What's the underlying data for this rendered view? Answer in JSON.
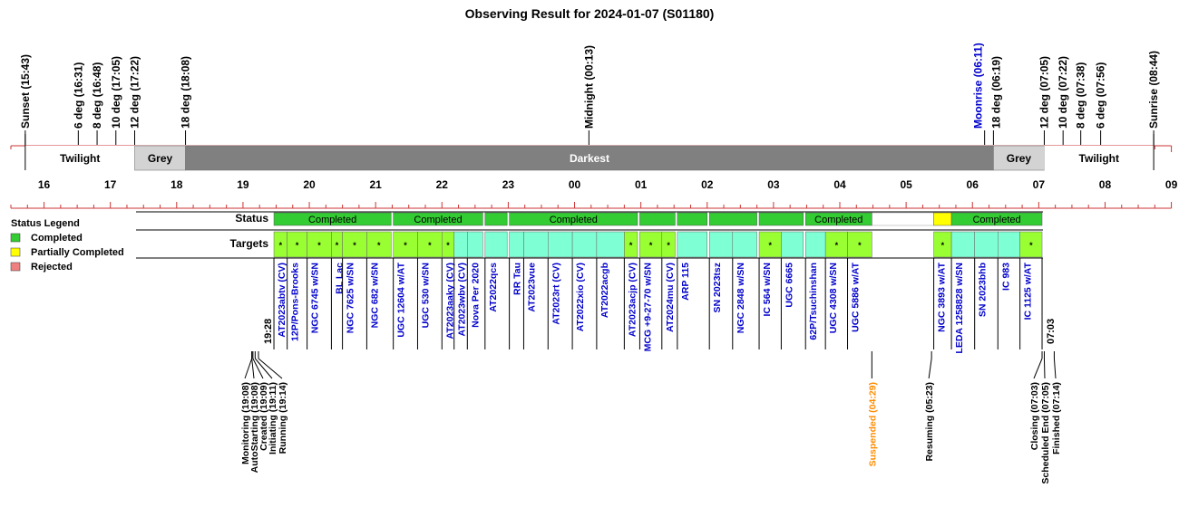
{
  "chart_data": {
    "type": "timeline",
    "title": "Observing Result for 2024-01-07 (S01180)",
    "time_axis": {
      "unit": "hour (local time)",
      "start": "15:30",
      "end": "09:00 (next day)",
      "tick_labels": [
        "16",
        "17",
        "18",
        "19",
        "20",
        "21",
        "22",
        "23",
        "00",
        "01",
        "02",
        "03",
        "04",
        "05",
        "06",
        "07",
        "08",
        "09"
      ]
    },
    "events_top": [
      {
        "label": "Sunset (15:43)",
        "time": "15:43",
        "color": "#000000"
      },
      {
        "label": "6 deg (16:31)",
        "time": "16:31",
        "color": "#000000"
      },
      {
        "label": "8 deg (16:48)",
        "time": "16:48",
        "color": "#000000"
      },
      {
        "label": "10 deg (17:05)",
        "time": "17:05",
        "color": "#000000"
      },
      {
        "label": "12 deg (17:22)",
        "time": "17:22",
        "color": "#000000"
      },
      {
        "label": "18 deg (18:08)",
        "time": "18:08",
        "color": "#000000"
      },
      {
        "label": "Midnight (00:13)",
        "time": "00:13",
        "color": "#000000"
      },
      {
        "label": "Moonrise (06:11)",
        "time": "06:11",
        "color": "#0000cc"
      },
      {
        "label": "18 deg (06:19)",
        "time": "06:19",
        "color": "#000000"
      },
      {
        "label": "12 deg (07:05)",
        "time": "07:05",
        "color": "#000000"
      },
      {
        "label": "10 deg (07:22)",
        "time": "07:22",
        "color": "#000000"
      },
      {
        "label": "8 deg (07:38)",
        "time": "07:38",
        "color": "#000000"
      },
      {
        "label": "6 deg (07:56)",
        "time": "07:56",
        "color": "#000000"
      },
      {
        "label": "Sunrise (08:44)",
        "time": "08:44",
        "color": "#000000"
      }
    ],
    "sky_periods": [
      {
        "label": "Twilight",
        "start": "15:43",
        "end": "17:22",
        "fill": "#ffffff",
        "text_color": "#000000"
      },
      {
        "label": "Grey",
        "start": "17:22",
        "end": "18:08",
        "fill": "#d3d3d3",
        "text_color": "#000000"
      },
      {
        "label": "Darkest",
        "start": "18:08",
        "end": "06:19",
        "fill": "#808080",
        "text_color": "#ffffff"
      },
      {
        "label": "Grey",
        "start": "06:19",
        "end": "07:05",
        "fill": "#d3d3d3",
        "text_color": "#000000"
      },
      {
        "label": "Twilight",
        "start": "07:05",
        "end": "08:44",
        "fill": "#ffffff",
        "text_color": "#000000"
      }
    ],
    "row_labels": {
      "status": "Status",
      "targets": "Targets"
    },
    "legend": {
      "title": "Status Legend",
      "items": [
        {
          "label": "Completed",
          "color": "#33cc33"
        },
        {
          "label": "Partially Completed",
          "color": "#ffff00"
        },
        {
          "label": "Rejected",
          "color": "#f08080"
        }
      ]
    },
    "status_blocks": [
      {
        "label": "Completed",
        "status": "completed",
        "start": "19:28",
        "end": "21:14"
      },
      {
        "label": "Completed",
        "status": "completed",
        "start": "21:16",
        "end": "22:37"
      },
      {
        "label": "",
        "status": "completed",
        "start": "22:39",
        "end": "22:59"
      },
      {
        "label": "Completed",
        "status": "completed",
        "start": "23:01",
        "end": "00:57"
      },
      {
        "label": "",
        "status": "completed",
        "start": "00:59",
        "end": "01:31"
      },
      {
        "label": "",
        "status": "completed",
        "start": "01:33",
        "end": "02:00"
      },
      {
        "label": "",
        "status": "completed",
        "start": "02:02",
        "end": "02:45"
      },
      {
        "label": "",
        "status": "completed",
        "start": "02:47",
        "end": "03:27"
      },
      {
        "label": "Completed",
        "status": "completed",
        "start": "03:29",
        "end": "04:29"
      },
      {
        "label": "",
        "status": "partial",
        "start": "05:25",
        "end": "05:41"
      },
      {
        "label": "Completed",
        "status": "completed",
        "start": "05:41",
        "end": "07:03"
      }
    ],
    "targets": [
      {
        "name": "AT2023abtv (CV)",
        "start": "19:28",
        "end": "19:40",
        "mark": "*",
        "fill": "#99ff33"
      },
      {
        "name": "12P/Pons-Brooks",
        "start": "19:40",
        "end": "19:58",
        "mark": "*",
        "fill": "#99ff33"
      },
      {
        "name": "NGC 6745 w/SN",
        "start": "19:58",
        "end": "20:20",
        "mark": "*",
        "fill": "#99ff33"
      },
      {
        "name": "BL Lac",
        "start": "20:20",
        "end": "20:30",
        "mark": "*",
        "fill": "#99ff33"
      },
      {
        "name": "NGC 7625 w/SN",
        "start": "20:30",
        "end": "20:52",
        "mark": "*",
        "fill": "#99ff33"
      },
      {
        "name": "NGC 682 w/SN",
        "start": "20:52",
        "end": "21:14",
        "mark": "*",
        "fill": "#99ff33"
      },
      {
        "name": "UGC 12604 w/AT",
        "start": "21:16",
        "end": "21:38",
        "mark": "*",
        "fill": "#99ff33"
      },
      {
        "name": "UGC 530 w/SN",
        "start": "21:38",
        "end": "22:00",
        "mark": "*",
        "fill": "#99ff33"
      },
      {
        "name": "AT2023aaky (CV)",
        "start": "22:00",
        "end": "22:11",
        "mark": "*",
        "fill": "#99ff33"
      },
      {
        "name": "AT2023wbv (CV)",
        "start": "22:11",
        "end": "22:23",
        "mark": "",
        "fill": "#7fffd4"
      },
      {
        "name": "Nova Per 2020",
        "start": "22:23",
        "end": "22:37",
        "mark": "",
        "fill": "#7fffd4"
      },
      {
        "name": "AT2022qcs",
        "start": "22:39",
        "end": "22:59",
        "mark": "",
        "fill": "#7fffd4"
      },
      {
        "name": "RR Tau",
        "start": "23:01",
        "end": "23:14",
        "mark": "",
        "fill": "#7fffd4"
      },
      {
        "name": "AT2023vue",
        "start": "23:14",
        "end": "23:36",
        "mark": "",
        "fill": "#7fffd4"
      },
      {
        "name": "AT2023rt (CV)",
        "start": "23:36",
        "end": "23:58",
        "mark": "",
        "fill": "#7fffd4"
      },
      {
        "name": "AT2022xio (CV)",
        "start": "23:58",
        "end": "00:20",
        "mark": "",
        "fill": "#7fffd4"
      },
      {
        "name": "AT2022acgb",
        "start": "00:20",
        "end": "00:45",
        "mark": "",
        "fill": "#7fffd4"
      },
      {
        "name": "AT2023acjp (CV)",
        "start": "00:45",
        "end": "00:57",
        "mark": "*",
        "fill": "#99ff33"
      },
      {
        "name": "MCG +9-27-70 w/SN",
        "start": "00:59",
        "end": "01:19",
        "mark": "*",
        "fill": "#99ff33"
      },
      {
        "name": "AT2024mu (CV)",
        "start": "01:19",
        "end": "01:31",
        "mark": "*",
        "fill": "#99ff33"
      },
      {
        "name": "ARP 115",
        "start": "01:33",
        "end": "02:00",
        "mark": "",
        "fill": "#7fffd4"
      },
      {
        "name": "SN 2023tsz",
        "start": "02:02",
        "end": "02:23",
        "mark": "",
        "fill": "#7fffd4"
      },
      {
        "name": "NGC 2848 w/SN",
        "start": "02:23",
        "end": "02:45",
        "mark": "",
        "fill": "#7fffd4"
      },
      {
        "name": "IC 564 w/SN",
        "start": "02:47",
        "end": "03:07",
        "mark": "*",
        "fill": "#99ff33"
      },
      {
        "name": "UGC 6665",
        "start": "03:07",
        "end": "03:27",
        "mark": "",
        "fill": "#7fffd4"
      },
      {
        "name": "62P/Tsuchinshan",
        "start": "03:29",
        "end": "03:47",
        "mark": "",
        "fill": "#7fffd4"
      },
      {
        "name": "UGC 4308 w/SN",
        "start": "03:47",
        "end": "04:07",
        "mark": "*",
        "fill": "#99ff33"
      },
      {
        "name": "UGC 5886 w/AT",
        "start": "04:07",
        "end": "04:29",
        "mark": "*",
        "fill": "#99ff33"
      },
      {
        "name": "NGC 3893 w/AT",
        "start": "05:25",
        "end": "05:41",
        "mark": "*",
        "fill": "#99ff33"
      },
      {
        "name": "LEDA 1258828 w/SN",
        "start": "05:41",
        "end": "06:02",
        "mark": "",
        "fill": "#7fffd4"
      },
      {
        "name": "SN 2023bhb",
        "start": "06:02",
        "end": "06:23",
        "mark": "",
        "fill": "#7fffd4"
      },
      {
        "name": "IC 983",
        "start": "06:23",
        "end": "06:43",
        "mark": "",
        "fill": "#7fffd4"
      },
      {
        "name": "IC 1125 w/AT",
        "start": "06:43",
        "end": "07:03",
        "mark": "*",
        "fill": "#99ff33"
      }
    ],
    "time_marks": [
      {
        "label": "19:28",
        "time": "19:28"
      },
      {
        "label": "07:03",
        "time": "07:03"
      }
    ],
    "events_bottom": [
      {
        "label": "Monitoring (19:08)",
        "time": "19:08",
        "color": "#000000"
      },
      {
        "label": "AutoStarting (19:08)",
        "time": "19:08",
        "color": "#000000"
      },
      {
        "label": "Created (19:09)",
        "time": "19:09",
        "color": "#000000"
      },
      {
        "label": "Initiating (19:11)",
        "time": "19:11",
        "color": "#000000"
      },
      {
        "label": "Running (19:14)",
        "time": "19:14",
        "color": "#000000"
      },
      {
        "label": "Suspended (04:29)",
        "time": "04:29",
        "color": "#ff8c00"
      },
      {
        "label": "Resuming (05:23)",
        "time": "05:23",
        "color": "#000000"
      },
      {
        "label": "Closing (07:03)",
        "time": "07:03",
        "color": "#000000"
      },
      {
        "label": "Scheduled End (07:05)",
        "time": "07:05",
        "color": "#000000"
      },
      {
        "label": "Finished (07:14)",
        "time": "07:14",
        "color": "#000000"
      }
    ]
  }
}
